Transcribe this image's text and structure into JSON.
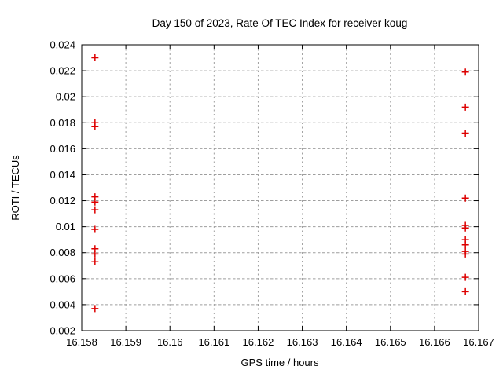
{
  "chart": {
    "title": "Day 150 of 2023, Rate Of TEC Index for receiver koug",
    "xlabel": "GPS time / hours",
    "ylabel": "ROTI / TECUs"
  },
  "chart_data": {
    "type": "scatter",
    "title": "Day 150 of 2023, Rate Of TEC Index for receiver koug",
    "xlabel": "GPS time / hours",
    "ylabel": "ROTI / TECUs",
    "xlim": [
      16.158,
      16.167
    ],
    "ylim": [
      0.002,
      0.024
    ],
    "xticks": [
      16.158,
      16.159,
      16.16,
      16.161,
      16.162,
      16.163,
      16.164,
      16.165,
      16.166,
      16.167
    ],
    "xtick_labels": [
      "16.158",
      "16.159",
      "16.16",
      "16.161",
      "16.162",
      "16.163",
      "16.164",
      "16.165",
      "16.166",
      "16.167"
    ],
    "yticks": [
      0.002,
      0.004,
      0.006,
      0.008,
      0.01,
      0.012,
      0.014,
      0.016,
      0.018,
      0.02,
      0.022,
      0.024
    ],
    "ytick_labels": [
      "0.002",
      "0.004",
      "0.006",
      "0.008",
      "0.01",
      "0.012",
      "0.014",
      "0.016",
      "0.018",
      "0.02",
      "0.022",
      "0.024"
    ],
    "grid": true,
    "legend": false,
    "marker": "plus",
    "marker_color": "#dd0000",
    "series": [
      {
        "name": "roti",
        "points": [
          [
            16.1583,
            0.023
          ],
          [
            16.1583,
            0.018
          ],
          [
            16.1583,
            0.0177
          ],
          [
            16.1583,
            0.0123
          ],
          [
            16.1583,
            0.0119
          ],
          [
            16.1583,
            0.0113
          ],
          [
            16.1583,
            0.0098
          ],
          [
            16.1583,
            0.0083
          ],
          [
            16.1583,
            0.0079
          ],
          [
            16.1583,
            0.0073
          ],
          [
            16.1583,
            0.0037
          ],
          [
            16.1667,
            0.0219
          ],
          [
            16.1667,
            0.0192
          ],
          [
            16.1667,
            0.0172
          ],
          [
            16.1667,
            0.0122
          ],
          [
            16.1667,
            0.0101
          ],
          [
            16.1667,
            0.0099
          ],
          [
            16.1667,
            0.009
          ],
          [
            16.1667,
            0.0086
          ],
          [
            16.1667,
            0.0081
          ],
          [
            16.1667,
            0.0079
          ],
          [
            16.1667,
            0.0061
          ],
          [
            16.1667,
            0.005
          ]
        ]
      }
    ]
  }
}
